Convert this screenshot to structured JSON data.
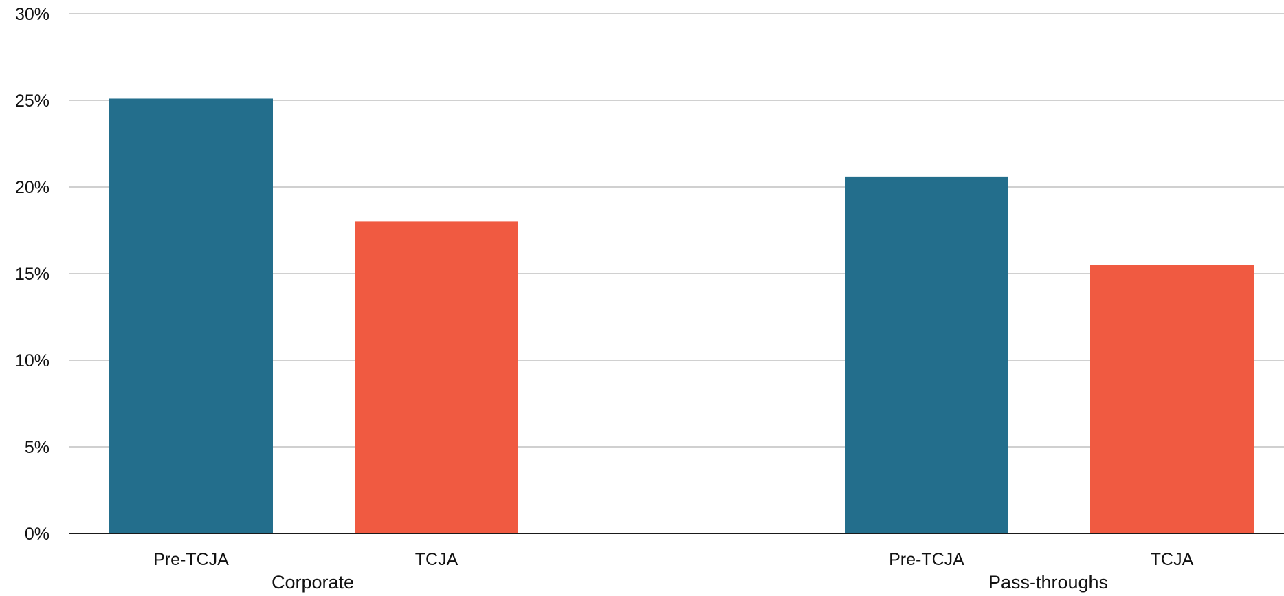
{
  "chart_data": {
    "type": "bar",
    "groups": [
      {
        "label": "Corporate",
        "bars": [
          {
            "label": "Pre-TCJA",
            "value": 25.1,
            "series": "Pre-TCJA"
          },
          {
            "label": "TCJA",
            "value": 18.0,
            "series": "TCJA"
          }
        ]
      },
      {
        "label": "Pass-throughs",
        "bars": [
          {
            "label": "Pre-TCJA",
            "value": 20.6,
            "series": "Pre-TCJA"
          },
          {
            "label": "TCJA",
            "value": 15.5,
            "series": "TCJA"
          }
        ]
      }
    ],
    "series_colors": {
      "Pre-TCJA": "#236E8C",
      "TCJA": "#F05A41"
    },
    "ylim": [
      0,
      30
    ],
    "yticks": [
      0,
      5,
      10,
      15,
      20,
      25,
      30
    ],
    "ytick_labels": [
      "0%",
      "5%",
      "10%",
      "15%",
      "20%",
      "25%",
      "30%"
    ],
    "grid": true,
    "legend": "none",
    "title": "",
    "xlabel": "",
    "ylabel": ""
  }
}
